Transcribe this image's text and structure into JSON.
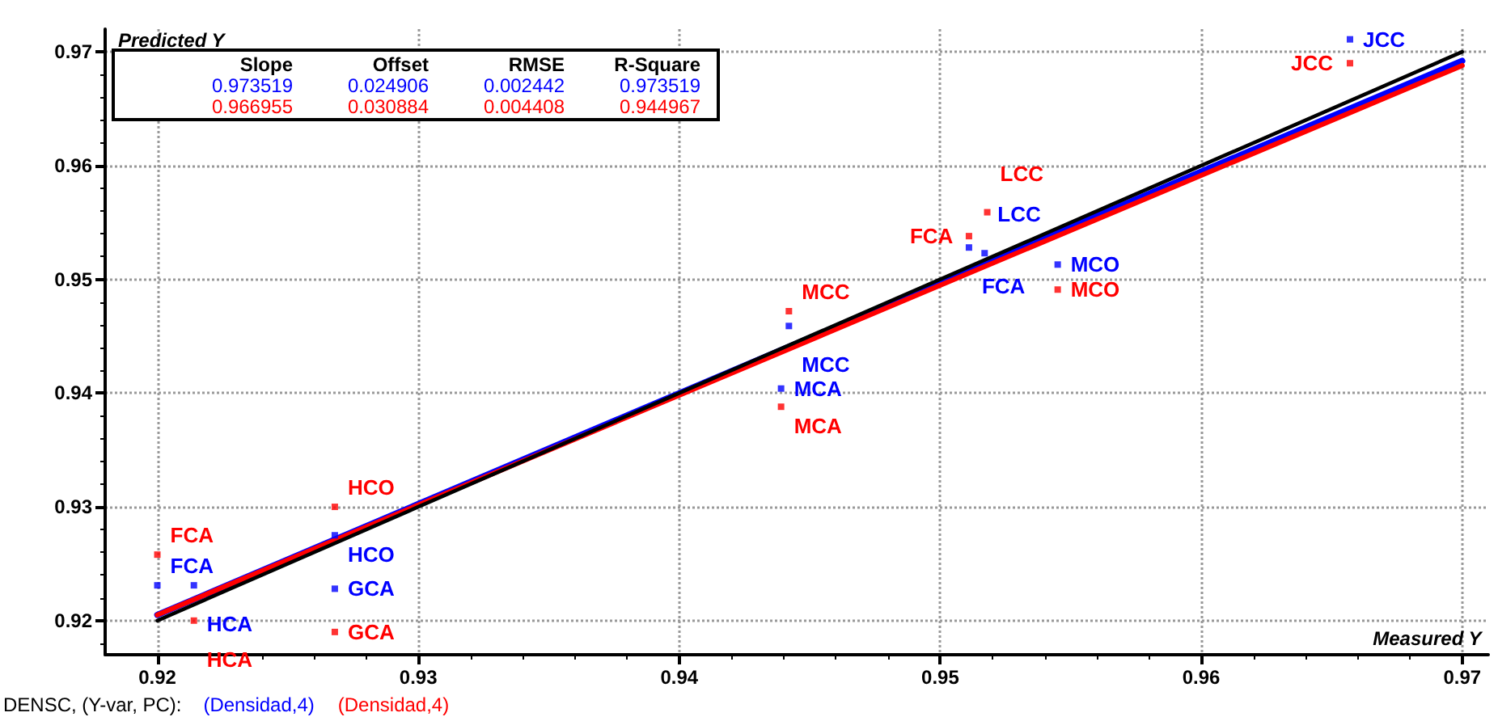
{
  "chart_data": {
    "type": "scatter",
    "xlabel": "Measured Y",
    "ylabel": "Predicted Y",
    "xlim": [
      0.918,
      0.971
    ],
    "ylim": [
      0.917,
      0.972
    ],
    "xticks": [
      0.92,
      0.93,
      0.94,
      0.95,
      0.96,
      0.97
    ],
    "yticks": [
      0.92,
      0.93,
      0.94,
      0.95,
      0.96,
      0.97
    ],
    "grid": true,
    "legend": "bottom left",
    "marker": "square",
    "series": [
      {
        "name": "(Densidad,4)",
        "color": "#0000ff",
        "x": [
          0.92,
          0.9214,
          0.9268,
          0.9268,
          0.9442,
          0.9439,
          0.9511,
          0.9517,
          0.9545,
          0.9657
        ],
        "values": [
          0.9231,
          0.9231,
          0.9275,
          0.9228,
          0.9459,
          0.9404,
          0.9528,
          0.9523,
          0.9513,
          0.9711
        ]
      },
      {
        "name": "(Densidad,4)",
        "color": "#ff0000",
        "x": [
          0.92,
          0.9214,
          0.9268,
          0.9268,
          0.9442,
          0.9439,
          0.9518,
          0.9511,
          0.9545,
          0.9657
        ],
        "values": [
          0.9258,
          0.92,
          0.93,
          0.919,
          0.9472,
          0.9388,
          0.9559,
          0.9538,
          0.9491,
          0.969
        ]
      },
      {
        "type": "line",
        "marker": "none",
        "color": "#0000ff",
        "x": [
          0.92,
          0.97
        ],
        "values": [
          0.9205,
          0.9692
        ]
      },
      {
        "type": "line",
        "marker": "none",
        "color": "#ff0000",
        "x": [
          0.92,
          0.97
        ],
        "values": [
          0.9205,
          0.9688
        ]
      },
      {
        "type": "line",
        "marker": "none",
        "color": "#000000",
        "x": [
          0.92,
          0.97
        ],
        "values": [
          0.92,
          0.97
        ]
      }
    ],
    "annotations": [
      "Slope",
      "Offset",
      "RMSE",
      "R-Square",
      "0.973519",
      "0.024906",
      "0.002442",
      "0.973519",
      "0.966955",
      "0.030884",
      "0.004408",
      "0.944967",
      "DENSC, (Y-var, PC):",
      {
        "text": "FCA",
        "x": 0.92,
        "y": 0.9231
      },
      {
        "text": "HCA",
        "x": 0.9214,
        "y": 0.9231
      },
      {
        "text": "HCO",
        "x": 0.9268,
        "y": 0.9275
      },
      {
        "text": "GCA",
        "x": 0.9268,
        "y": 0.9228
      },
      {
        "text": "MCC",
        "x": 0.9442,
        "y": 0.9459
      },
      {
        "text": "MCA",
        "x": 0.9439,
        "y": 0.9404
      },
      {
        "text": "FCA",
        "x": 0.9511,
        "y": 0.9528
      },
      {
        "text": "LCC",
        "x": 0.9517,
        "y": 0.9523
      },
      {
        "text": "MCO",
        "x": 0.9545,
        "y": 0.9513
      },
      {
        "text": "JCC",
        "x": 0.9657,
        "y": 0.9711
      },
      {
        "text": "FCA",
        "x": 0.92,
        "y": 0.9258
      },
      {
        "text": "HCA",
        "x": 0.9214,
        "y": 0.92
      },
      {
        "text": "HCO",
        "x": 0.9268,
        "y": 0.93
      },
      {
        "text": "GCA",
        "x": 0.9268,
        "y": 0.919
      },
      {
        "text": "MCC",
        "x": 0.9442,
        "y": 0.9472
      },
      {
        "text": "MCA",
        "x": 0.9439,
        "y": 0.9388
      },
      {
        "text": "LCC",
        "x": 0.9518,
        "y": 0.9559
      },
      {
        "text": "FCA",
        "x": 0.9511,
        "y": 0.9538
      },
      {
        "text": "MCO",
        "x": 0.9545,
        "y": 0.9491
      },
      {
        "text": "JCC",
        "x": 0.9657,
        "y": 0.969
      }
    ]
  }
}
